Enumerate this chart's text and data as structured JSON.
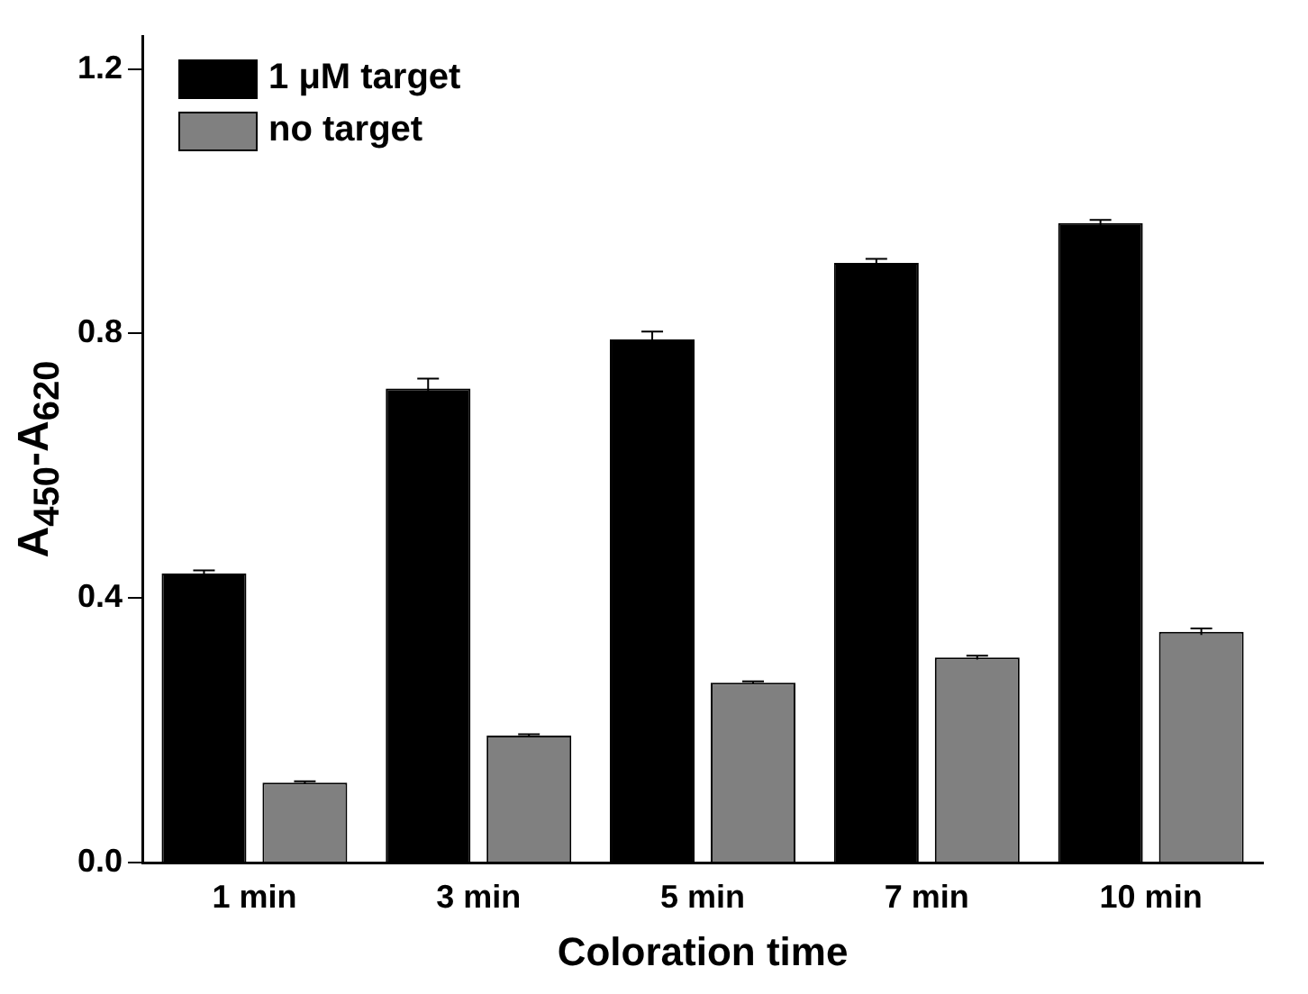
{
  "chart_data": {
    "type": "bar",
    "xlabel": "Coloration time",
    "ylabel": "A$_{450}$-A$_{620}$",
    "categories": [
      "1 min",
      "3 min",
      "5 min",
      "7 min",
      "10 min"
    ],
    "series": [
      {
        "name": "1 μM target",
        "color": "#000000",
        "values": [
          0.437,
          0.717,
          0.791,
          0.907,
          0.967
        ],
        "errors": [
          0.005,
          0.015,
          0.012,
          0.006,
          0.005
        ]
      },
      {
        "name": "no target",
        "color": "#808080",
        "values": [
          0.121,
          0.192,
          0.272,
          0.31,
          0.349
        ],
        "errors": [
          0.002,
          0.002,
          0.002,
          0.003,
          0.005
        ]
      }
    ],
    "ylim": [
      0,
      1.25
    ],
    "yticks": [
      {
        "value": 0,
        "label": "0.0"
      },
      {
        "value": 0.4,
        "label": "0.4"
      },
      {
        "value": 0.8,
        "label": "0.8"
      },
      {
        "value": 1.2,
        "label": "1.2"
      }
    ],
    "grid": false,
    "legend": "top left"
  }
}
